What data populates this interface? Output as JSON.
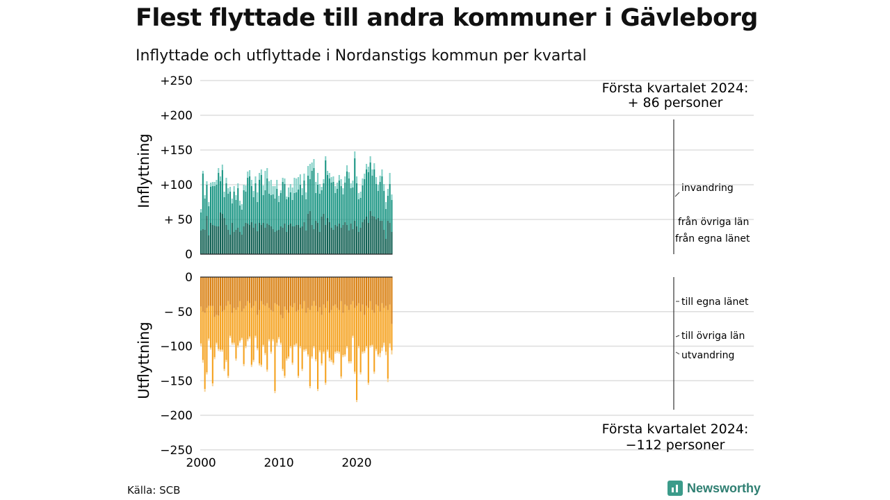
{
  "title": "Flest flyttade till andra kommuner i Gävleborg",
  "subtitle": "Inflyttade och utflyttade i Nordanstigs kommun per kvartal",
  "source": "Källa: SCB",
  "brand": "Newsworthy",
  "colors": {
    "in_egna": "#0f5f52",
    "in_ovriga": "#1a9583",
    "in_invandring": "#86d1c8",
    "out_egna": "#d97f0f",
    "out_ovriga": "#f5a21f",
    "out_utvandring": "#f8d49a",
    "grid": "#dddddd",
    "axis": "#333333"
  },
  "chart_data": {
    "type": "bar",
    "stacked": true,
    "x_start_quarter": "2000 Q1",
    "x_end_quarter": "2024 Q1",
    "x_ticks": [
      "2000",
      "2010",
      "2020"
    ],
    "panels": [
      {
        "ylabel": "Inflyttning",
        "ylim": [
          0,
          250
        ],
        "y_ticks": [
          "+250",
          "+200",
          "+150",
          "+100",
          "+ 50",
          "0"
        ],
        "callout": [
          "Första kvartalet 2024:",
          "+ 86 personer"
        ],
        "series": [
          {
            "name": "från egna länet",
            "values": [
              34,
              36,
              35,
              55,
              27,
              45,
              42,
              41,
              40,
              40,
              60,
              58,
              52,
              42,
              35,
              28,
              45,
              32,
              35,
              38,
              32,
              28,
              40,
              45,
              44,
              42,
              46,
              38,
              44,
              33,
              45,
              42,
              45,
              38,
              44,
              42,
              40,
              36,
              32,
              34,
              35,
              40,
              38,
              44,
              32,
              42,
              44,
              40,
              40,
              42,
              42,
              38,
              40,
              46,
              34,
              58,
              62,
              42,
              36,
              48,
              45,
              32,
              54,
              58,
              42,
              52,
              46,
              38,
              35,
              42,
              40,
              44,
              38,
              42,
              46,
              42,
              34,
              44,
              36,
              48,
              40,
              32,
              38,
              46,
              50,
              54,
              45,
              62,
              55,
              54,
              50,
              52,
              48,
              48,
              35,
              22,
              48,
              45,
              32
            ]
          },
          {
            "name": "från övriga län",
            "values": [
              26,
              80,
              45,
              45,
              42,
              52,
              56,
              57,
              60,
              77,
              45,
              63,
              30,
              60,
              52,
              62,
              28,
              58,
              43,
              57,
              38,
              36,
              52,
              45,
              66,
              70,
              52,
              44,
              58,
              42,
              62,
              72,
              40,
              54,
              65,
              45,
              45,
              50,
              48,
              60,
              40,
              48,
              66,
              57,
              47,
              40,
              45,
              38,
              48,
              47,
              51,
              62,
              45,
              60,
              45,
              55,
              46,
              78,
              88,
              40,
              55,
              55,
              38,
              44,
              93,
              62,
              63,
              65,
              69,
              46,
              54,
              62,
              60,
              44,
              57,
              77,
              75,
              51,
              60,
              90,
              62,
              47,
              43,
              53,
              58,
              68,
              73,
              70,
              58,
              68,
              51,
              39,
              56,
              64,
              56,
              43,
              36,
              56,
              46
            ]
          },
          {
            "name": "invandring",
            "values": [
              5,
              4,
              5,
              5,
              6,
              6,
              6,
              6,
              7,
              7,
              7,
              8,
              8,
              8,
              8,
              7,
              7,
              8,
              7,
              7,
              7,
              8,
              8,
              9,
              9,
              9,
              9,
              9,
              10,
              14,
              10,
              8,
              14,
              28,
              15,
              18,
              22,
              12,
              18,
              13,
              9,
              4,
              6,
              8,
              4,
              14,
              12,
              18,
              22,
              20,
              18,
              15,
              10,
              10,
              10,
              14,
              22,
              12,
              13,
              16,
              17,
              14,
              5,
              6,
              6,
              6,
              8,
              8,
              8,
              10,
              9,
              8,
              10,
              9,
              9,
              9,
              9,
              7,
              10,
              10,
              10,
              9,
              9,
              10,
              8,
              8,
              8,
              9,
              9,
              9,
              10,
              9,
              9,
              10,
              10,
              10,
              10,
              16,
              8
            ]
          }
        ]
      },
      {
        "ylabel": "Utflyttning",
        "ylim": [
          -250,
          0
        ],
        "y_ticks": [
          "0",
          "− 50",
          "−100",
          "−150",
          "−200",
          "−250"
        ],
        "callout": [
          "Första kvartalet 2024:",
          "−112 personer"
        ],
        "series": [
          {
            "name": "till egna länet",
            "values": [
              -43,
              -50,
              -52,
              -45,
              -42,
              -42,
              -42,
              -58,
              -55,
              -56,
              -42,
              -50,
              -48,
              -42,
              -35,
              -40,
              -52,
              -45,
              -48,
              -44,
              -35,
              -50,
              -46,
              -42,
              -35,
              -38,
              -45,
              -42,
              -35,
              -55,
              -48,
              -35,
              -40,
              -42,
              -38,
              -45,
              -48,
              -50,
              -38,
              -40,
              -42,
              -55,
              -60,
              -43,
              -48,
              -52,
              -42,
              -44,
              -38,
              -50,
              -48,
              -40,
              -46,
              -35,
              -52,
              -45,
              -48,
              -42,
              -35,
              -42,
              -50,
              -44,
              -55,
              -40,
              -45,
              -35,
              -52,
              -48,
              -42,
              -40,
              -45,
              -48,
              -35,
              -52,
              -40,
              -42,
              -48,
              -40,
              -35,
              -45,
              -42,
              -38,
              -50,
              -40,
              -55,
              -42,
              -45,
              -35,
              -48,
              -52,
              -40,
              -42,
              -50,
              -38,
              -45,
              -42,
              -48,
              -40,
              -68
            ]
          },
          {
            "name": "till övriga län",
            "values": [
              -53,
              -70,
              -110,
              -93,
              -47,
              -60,
              -112,
              -58,
              -40,
              -48,
              -63,
              -55,
              -85,
              -78,
              -108,
              -45,
              -43,
              -50,
              -70,
              -55,
              -57,
              -38,
              -80,
              -58,
              -55,
              -48,
              -82,
              -78,
              -50,
              -48,
              -77,
              -92,
              -58,
              -68,
              -96,
              -45,
              -60,
              -40,
              -127,
              -55,
              -45,
              -40,
              -73,
              -100,
              -70,
              -63,
              -58,
              -80,
              -60,
              -46,
              -95,
              -60,
              -87,
              -70,
              -52,
              -67,
              -110,
              -73,
              -65,
              -77,
              -112,
              -62,
              -70,
              -68,
              -108,
              -70,
              -65,
              -72,
              -82,
              -68,
              -62,
              -60,
              -109,
              -61,
              -72,
              -58,
              -74,
              -82,
              -50,
              -92,
              -136,
              -62,
              -88,
              -68,
              -52,
              -58,
              -108,
              -64,
              -50,
              -85,
              -64,
              -70,
              -60,
              -64,
              -50,
              -66,
              -99,
              -56,
              -38
            ]
          },
          {
            "name": "utvandring",
            "values": [
              -4,
              -4,
              -4,
              -3,
              -3,
              -3,
              -4,
              -3,
              -3,
              -3,
              -3,
              -3,
              -3,
              -3,
              -3,
              -3,
              -3,
              -3,
              -3,
              -3,
              -3,
              -3,
              -3,
              -3,
              -3,
              -3,
              -3,
              -3,
              -3,
              -3,
              -3,
              -3,
              -3,
              -3,
              -3,
              -3,
              -3,
              -3,
              -3,
              -5,
              -3,
              -3,
              -3,
              -3,
              -3,
              -3,
              -3,
              -3,
              -3,
              -3,
              -3,
              -3,
              -3,
              -3,
              -3,
              -3,
              -3,
              -3,
              -3,
              -3,
              -3,
              -3,
              -3,
              -3,
              -3,
              -3,
              -5,
              -3,
              -3,
              -3,
              -3,
              -3,
              -3,
              -3,
              -3,
              -3,
              -3,
              -3,
              -3,
              -3,
              -3,
              -3,
              -3,
              -3,
              -3,
              -3,
              -3,
              -3,
              -3,
              -3,
              -3,
              -3,
              -6,
              -5,
              -4,
              -5,
              -5,
              -6,
              -6
            ]
          }
        ]
      }
    ],
    "labels": [
      "invandring",
      "från övriga län",
      "från egna länet",
      "till egna länet",
      "till övriga län",
      "utvandring"
    ]
  }
}
